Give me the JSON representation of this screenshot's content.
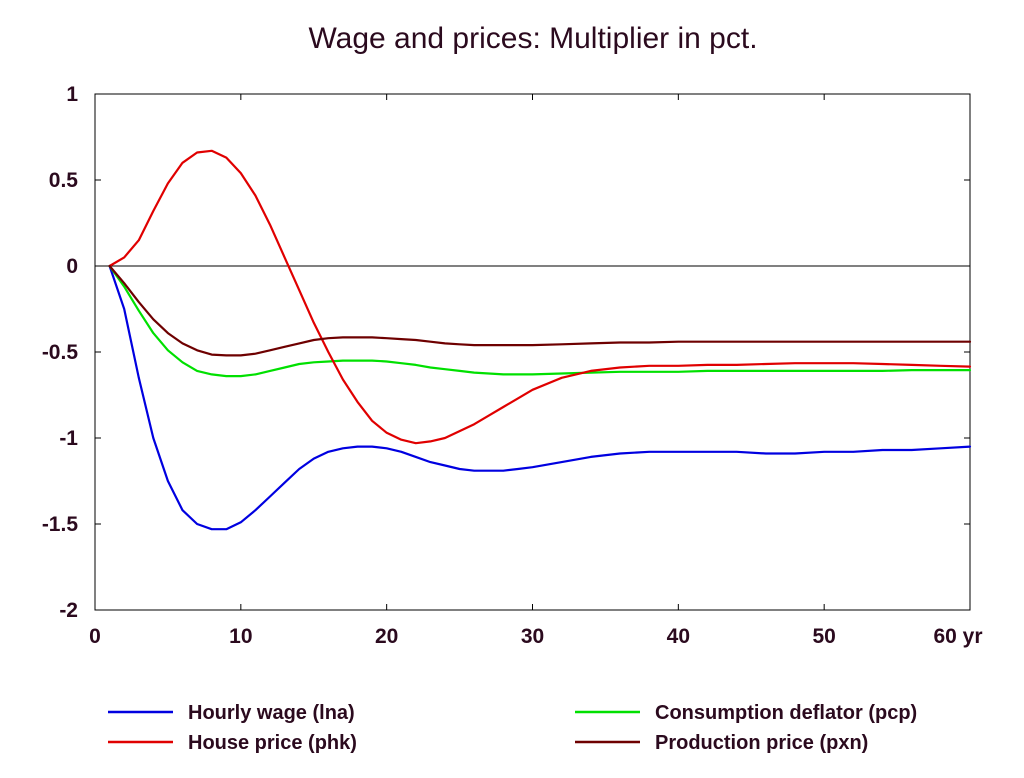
{
  "chart_data": {
    "type": "line",
    "title": "Wage and prices: Multiplier in pct.",
    "x_unit_label": "yr",
    "xlim": [
      0,
      60
    ],
    "ylim": [
      -2,
      1
    ],
    "x_ticks": [
      0,
      10,
      20,
      30,
      40,
      50,
      60
    ],
    "x_tick_labels": [
      "0",
      "10",
      "20",
      "30",
      "40",
      "50",
      "60 yr"
    ],
    "y_ticks": [
      1,
      0.5,
      0,
      -0.5,
      -1,
      -1.5,
      -2
    ],
    "y_tick_labels": [
      "1",
      "0.5",
      "0",
      "-0.5",
      "-1",
      "-1.5",
      "-2"
    ],
    "zero_line": true,
    "grid": false,
    "legend_position": "bottom",
    "x": [
      1,
      2,
      3,
      4,
      5,
      6,
      7,
      8,
      9,
      10,
      11,
      12,
      13,
      14,
      15,
      16,
      17,
      18,
      19,
      20,
      21,
      22,
      23,
      24,
      25,
      26,
      27,
      28,
      29,
      30,
      32,
      34,
      36,
      38,
      40,
      42,
      44,
      46,
      48,
      50,
      52,
      54,
      56,
      58,
      60
    ],
    "series": [
      {
        "name": "Hourly wage (lna)",
        "color": "#0000e0",
        "values": [
          0,
          -0.25,
          -0.65,
          -1.0,
          -1.25,
          -1.42,
          -1.5,
          -1.53,
          -1.53,
          -1.49,
          -1.42,
          -1.34,
          -1.26,
          -1.18,
          -1.12,
          -1.08,
          -1.06,
          -1.05,
          -1.05,
          -1.06,
          -1.08,
          -1.11,
          -1.14,
          -1.16,
          -1.18,
          -1.19,
          -1.19,
          -1.19,
          -1.18,
          -1.17,
          -1.14,
          -1.11,
          -1.09,
          -1.08,
          -1.08,
          -1.08,
          -1.08,
          -1.09,
          -1.09,
          -1.08,
          -1.08,
          -1.07,
          -1.07,
          -1.06,
          -1.05
        ]
      },
      {
        "name": "Consumption deflator (pcp)",
        "color": "#00e000",
        "values": [
          0,
          -0.12,
          -0.26,
          -0.39,
          -0.49,
          -0.56,
          -0.61,
          -0.63,
          -0.64,
          -0.64,
          -0.63,
          -0.61,
          -0.59,
          -0.57,
          -0.56,
          -0.555,
          -0.55,
          -0.55,
          -0.55,
          -0.555,
          -0.565,
          -0.575,
          -0.59,
          -0.6,
          -0.61,
          -0.62,
          -0.625,
          -0.63,
          -0.63,
          -0.63,
          -0.625,
          -0.62,
          -0.615,
          -0.615,
          -0.615,
          -0.61,
          -0.61,
          -0.61,
          -0.61,
          -0.61,
          -0.61,
          -0.61,
          -0.605,
          -0.605,
          -0.605
        ]
      },
      {
        "name": "House price (phk)",
        "color": "#e00000",
        "values": [
          0,
          0.05,
          0.15,
          0.32,
          0.48,
          0.6,
          0.66,
          0.67,
          0.63,
          0.54,
          0.41,
          0.24,
          0.05,
          -0.14,
          -0.33,
          -0.5,
          -0.66,
          -0.79,
          -0.9,
          -0.97,
          -1.01,
          -1.03,
          -1.02,
          -1.0,
          -0.96,
          -0.92,
          -0.87,
          -0.82,
          -0.77,
          -0.72,
          -0.65,
          -0.61,
          -0.59,
          -0.58,
          -0.58,
          -0.575,
          -0.575,
          -0.57,
          -0.565,
          -0.565,
          -0.565,
          -0.57,
          -0.575,
          -0.58,
          -0.585
        ]
      },
      {
        "name": "Production price (pxn)",
        "color": "#6e0000",
        "values": [
          0,
          -0.1,
          -0.21,
          -0.31,
          -0.39,
          -0.45,
          -0.49,
          -0.515,
          -0.52,
          -0.52,
          -0.51,
          -0.49,
          -0.47,
          -0.45,
          -0.43,
          -0.42,
          -0.415,
          -0.415,
          -0.415,
          -0.42,
          -0.425,
          -0.43,
          -0.44,
          -0.45,
          -0.455,
          -0.46,
          -0.46,
          -0.46,
          -0.46,
          -0.46,
          -0.455,
          -0.45,
          -0.445,
          -0.445,
          -0.44,
          -0.44,
          -0.44,
          -0.44,
          -0.44,
          -0.44,
          -0.44,
          -0.44,
          -0.44,
          -0.44,
          -0.44
        ]
      }
    ],
    "legend": [
      {
        "name": "Hourly wage (lna)",
        "color": "#0000e0"
      },
      {
        "name": "House price (phk)",
        "color": "#e00000"
      },
      {
        "name": "Consumption deflator (pcp)",
        "color": "#00e000"
      },
      {
        "name": "Production price (pxn)",
        "color": "#6e0000"
      }
    ]
  }
}
